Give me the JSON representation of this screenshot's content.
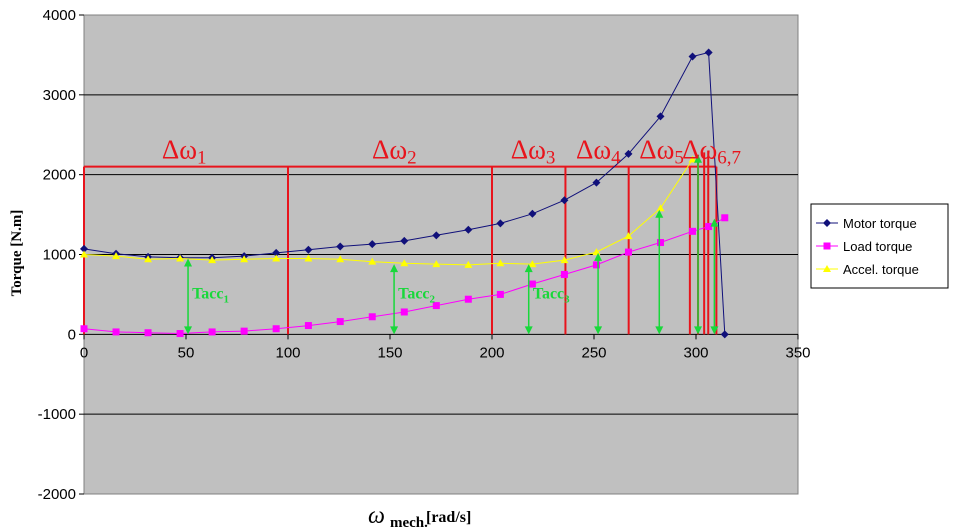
{
  "chart_data": {
    "type": "line",
    "title": "",
    "xlabel": {
      "symbol": "ω",
      "subscript": "mech.",
      "unit": "[rad/s]"
    },
    "ylabel": "Torque [N.m]",
    "xlim": [
      0,
      350
    ],
    "ylim": [
      -2000,
      4000
    ],
    "xticks": [
      0,
      50,
      100,
      150,
      200,
      250,
      300,
      350
    ],
    "yticks": [
      -2000,
      -1000,
      0,
      1000,
      2000,
      3000,
      4000
    ],
    "grid": "horizontal",
    "legend_position": "right",
    "colors": {
      "plot_background": "#c0c0c0",
      "interval": "#e8141c",
      "arrow": "#18d83a"
    },
    "series": [
      {
        "name": "Motor torque",
        "color": "#10107a",
        "marker": "diamond",
        "x": [
          0,
          15.7,
          31.4,
          47.1,
          62.8,
          78.5,
          94.2,
          110,
          125.6,
          141.3,
          157,
          172.7,
          188.4,
          204.1,
          219.8,
          235.5,
          251.2,
          266.9,
          282.6,
          298.3,
          306.2,
          314.1
        ],
        "y": [
          1070,
          1010,
          970,
          960,
          960,
          980,
          1020,
          1060,
          1100,
          1130,
          1170,
          1240,
          1310,
          1390,
          1510,
          1680,
          1900,
          2260,
          2730,
          3480,
          3530,
          0
        ]
      },
      {
        "name": "Load torque",
        "color": "#ff00ff",
        "marker": "square",
        "x": [
          0,
          15.7,
          31.4,
          47.1,
          62.8,
          78.5,
          94.2,
          110,
          125.6,
          141.3,
          157,
          172.7,
          188.4,
          204.1,
          219.8,
          235.5,
          251.2,
          266.9,
          282.6,
          298.3,
          306.2,
          314.1
        ],
        "y": [
          70,
          30,
          20,
          10,
          30,
          40,
          70,
          110,
          160,
          220,
          280,
          360,
          440,
          500,
          630,
          750,
          870,
          1030,
          1150,
          1290,
          1350,
          1460
        ]
      },
      {
        "name": "Accel. torque",
        "color": "#ffff00",
        "marker": "triangle",
        "x": [
          0,
          15.7,
          31.4,
          47.1,
          62.8,
          78.5,
          94.2,
          110,
          125.6,
          141.3,
          157,
          172.7,
          188.4,
          204.1,
          219.8,
          235.5,
          251.2,
          266.9,
          282.6,
          298.3
        ],
        "y": [
          1000,
          980,
          940,
          950,
          930,
          940,
          950,
          950,
          940,
          910,
          890,
          880,
          870,
          890,
          880,
          930,
          1030,
          1230,
          1580,
          2190
        ]
      }
    ],
    "intervals": {
      "level": 2100,
      "boundaries": [
        0,
        100,
        200,
        236,
        267,
        297,
        310
      ],
      "labels": [
        {
          "base": "Δω",
          "sub": "1",
          "x": 47
        },
        {
          "base": "Δω",
          "sub": "2",
          "x": 150
        },
        {
          "base": "Δω",
          "sub": "3",
          "x": 218
        },
        {
          "base": "Δω",
          "sub": "4",
          "x": 250
        },
        {
          "base": "Δω",
          "sub": "5",
          "x": 281
        },
        {
          "base": "Δω",
          "sub": "6,7",
          "x": 302
        }
      ],
      "extra_top_lines": [
        {
          "x": 301,
          "y": 2250
        },
        {
          "x": 304,
          "y": 2280
        },
        {
          "x": 306,
          "y": 2300
        }
      ]
    },
    "accel_arrows": [
      {
        "x": 51,
        "y": 950
      },
      {
        "x": 152,
        "y": 880
      },
      {
        "x": 218,
        "y": 880
      },
      {
        "x": 252,
        "y": 1020
      },
      {
        "x": 282,
        "y": 1560
      },
      {
        "x": 301,
        "y": 2250
      },
      {
        "x": 309,
        "y": 1450
      }
    ],
    "annotations": [
      {
        "base": "Tacc",
        "sub": "1",
        "x": 52,
        "y": 450
      },
      {
        "base": "Tacc",
        "sub": "2",
        "x": 153,
        "y": 450
      },
      {
        "base": "Tacc",
        "sub": "3",
        "x": 219,
        "y": 450
      }
    ]
  }
}
